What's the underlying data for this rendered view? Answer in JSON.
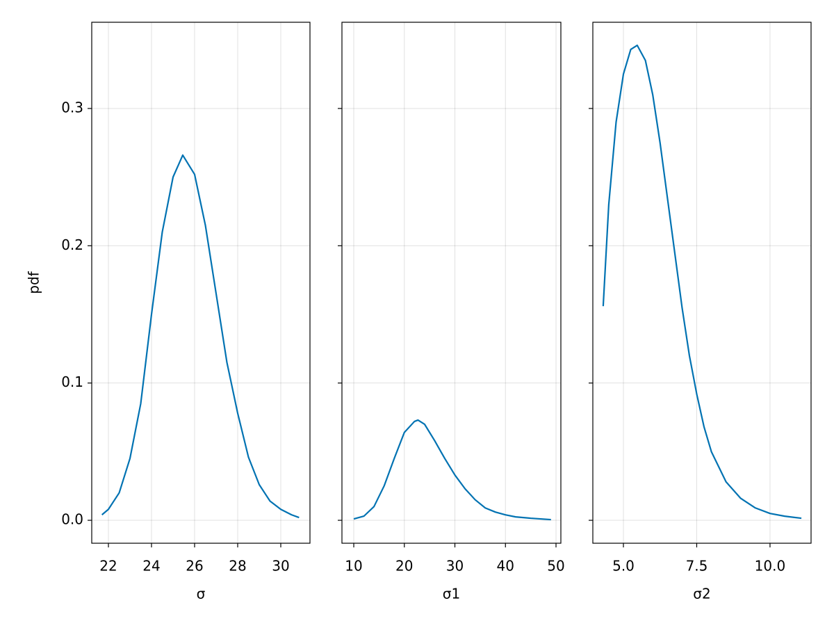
{
  "chart_data": [
    {
      "type": "line",
      "xlabel": "σ",
      "ylabel": "pdf",
      "xlim": [
        21.226,
        31.355
      ],
      "ylim": [
        -0.0167,
        0.3628
      ],
      "xticks": [
        22,
        24,
        26,
        28,
        30
      ],
      "yticks": [
        {
          "value": 0,
          "label": "0.0"
        },
        0.1,
        0.2,
        0.3
      ],
      "grid": true,
      "x": [
        21.7,
        22,
        22.5,
        23,
        23.5,
        24,
        24.5,
        25,
        25.45,
        26,
        26.5,
        27,
        27.5,
        28,
        28.5,
        29,
        29.5,
        30,
        30.5,
        30.85
      ],
      "series": [
        {
          "color": "#0072b2",
          "values": [
            0.004,
            0.008,
            0.02,
            0.045,
            0.085,
            0.15,
            0.21,
            0.25,
            0.266,
            0.252,
            0.215,
            0.165,
            0.115,
            0.078,
            0.046,
            0.026,
            0.014,
            0.008,
            0.004,
            0.002
          ]
        }
      ]
    },
    {
      "type": "line",
      "xlabel": "σ1",
      "xlim": [
        7.66,
        50.96
      ],
      "ylim": [
        -0.0167,
        0.3628
      ],
      "xticks": [
        10,
        20,
        30,
        40,
        50
      ],
      "yticks": [
        0,
        0.1,
        0.2,
        0.3
      ],
      "grid": true,
      "x": [
        10,
        12,
        14,
        16,
        18,
        20,
        22,
        22.7,
        24,
        26,
        28,
        30,
        32,
        34,
        36,
        38,
        40,
        42,
        45,
        49
      ],
      "series": [
        {
          "color": "#0072b2",
          "values": [
            0.001,
            0.003,
            0.01,
            0.025,
            0.045,
            0.064,
            0.072,
            0.073,
            0.07,
            0.058,
            0.045,
            0.033,
            0.023,
            0.015,
            0.009,
            0.006,
            0.004,
            0.0025,
            0.0015,
            0.0005
          ]
        }
      ]
    },
    {
      "type": "line",
      "xlabel": "σ2",
      "xlim": [
        3.957,
        11.4
      ],
      "ylim": [
        -0.0167,
        0.3628
      ],
      "xticks": [
        {
          "value": 5,
          "label": "5.0"
        },
        7.5,
        {
          "value": 10,
          "label": "10.0"
        }
      ],
      "yticks": [
        0,
        0.1,
        0.2,
        0.3
      ],
      "grid": true,
      "x": [
        4.31,
        4.5,
        4.75,
        5,
        5.25,
        5.47,
        5.75,
        6,
        6.25,
        6.5,
        6.75,
        7,
        7.25,
        7.5,
        7.75,
        8,
        8.5,
        9,
        9.5,
        10,
        10.5,
        11.07
      ],
      "series": [
        {
          "color": "#0072b2",
          "values": [
            0.156,
            0.23,
            0.29,
            0.325,
            0.343,
            0.346,
            0.335,
            0.31,
            0.275,
            0.235,
            0.195,
            0.155,
            0.12,
            0.092,
            0.068,
            0.05,
            0.028,
            0.016,
            0.009,
            0.005,
            0.003,
            0.0015
          ]
        }
      ]
    }
  ]
}
